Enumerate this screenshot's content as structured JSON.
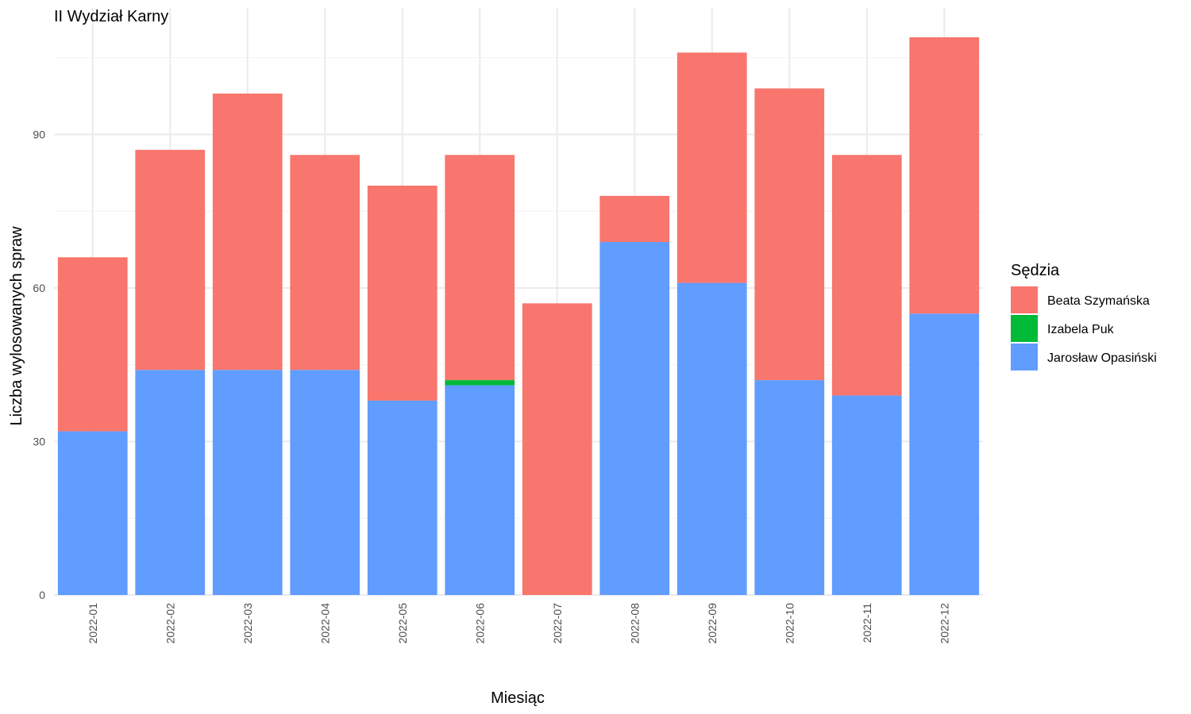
{
  "chart_data": {
    "type": "bar",
    "stacked": true,
    "title": "II Wydział Karny",
    "xlabel": "Miesiąc",
    "ylabel": "Liczba wylosowanych spraw",
    "categories": [
      "2022-01",
      "2022-02",
      "2022-03",
      "2022-04",
      "2022-05",
      "2022-06",
      "2022-07",
      "2022-08",
      "2022-09",
      "2022-10",
      "2022-11",
      "2022-12"
    ],
    "series": [
      {
        "name": "Jarosław Opasiński",
        "color": "#619CFF",
        "values": [
          32,
          44,
          44,
          44,
          38,
          41,
          0,
          69,
          61,
          42,
          39,
          55
        ]
      },
      {
        "name": "Izabela Puk",
        "color": "#00BA38",
        "values": [
          0,
          0,
          0,
          0,
          0,
          1,
          0,
          0,
          0,
          0,
          0,
          0
        ]
      },
      {
        "name": "Beata Szymańska",
        "color": "#F8766D",
        "values": [
          34,
          43,
          54,
          42,
          42,
          44,
          57,
          9,
          45,
          57,
          47,
          54
        ]
      }
    ],
    "ylim": [
      0,
      115
    ],
    "yticks": [
      0,
      30,
      60,
      90
    ],
    "grid": true,
    "legend": {
      "title": "Sędzia",
      "position": "right",
      "order": [
        "Beata Szymańska",
        "Izabela Puk",
        "Jarosław Opasiński"
      ]
    }
  }
}
